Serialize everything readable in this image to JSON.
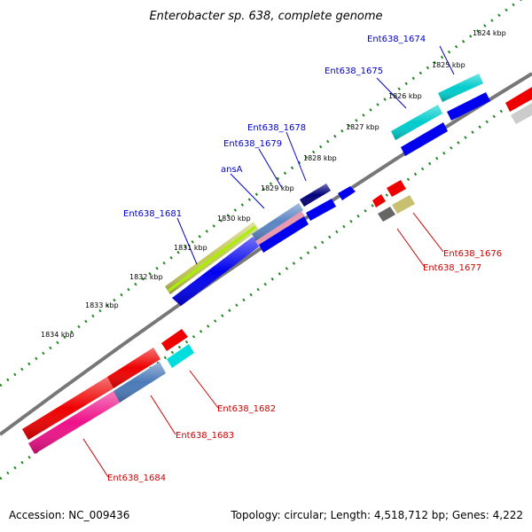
{
  "title": "Enterobacter sp. 638, complete genome",
  "accession": "Accession: NC_009436",
  "summary": "Topology: circular; Length: 4,518,712 bp; Genes: 4,222",
  "colors": {
    "backbone": "#777777",
    "ticks": "#228822",
    "forward_label": "#0000cc",
    "reverse_label": "#cc0000"
  },
  "ticks": [
    "1824 kbp",
    "1825 kbp",
    "1826 kbp",
    "1827 kbp",
    "1828 kbp",
    "1829 kbp",
    "1830 kbp",
    "1831 kbp",
    "1832 kbp",
    "1833 kbp",
    "1834 kbp"
  ],
  "forward_genes": [
    "Ent638_1674",
    "Ent638_1675",
    "Ent638_1678",
    "Ent638_1679",
    "ansA",
    "Ent638_1681"
  ],
  "reverse_genes": [
    "Ent638_1676",
    "Ent638_1677",
    "Ent638_1682",
    "Ent638_1683",
    "Ent638_1684"
  ]
}
